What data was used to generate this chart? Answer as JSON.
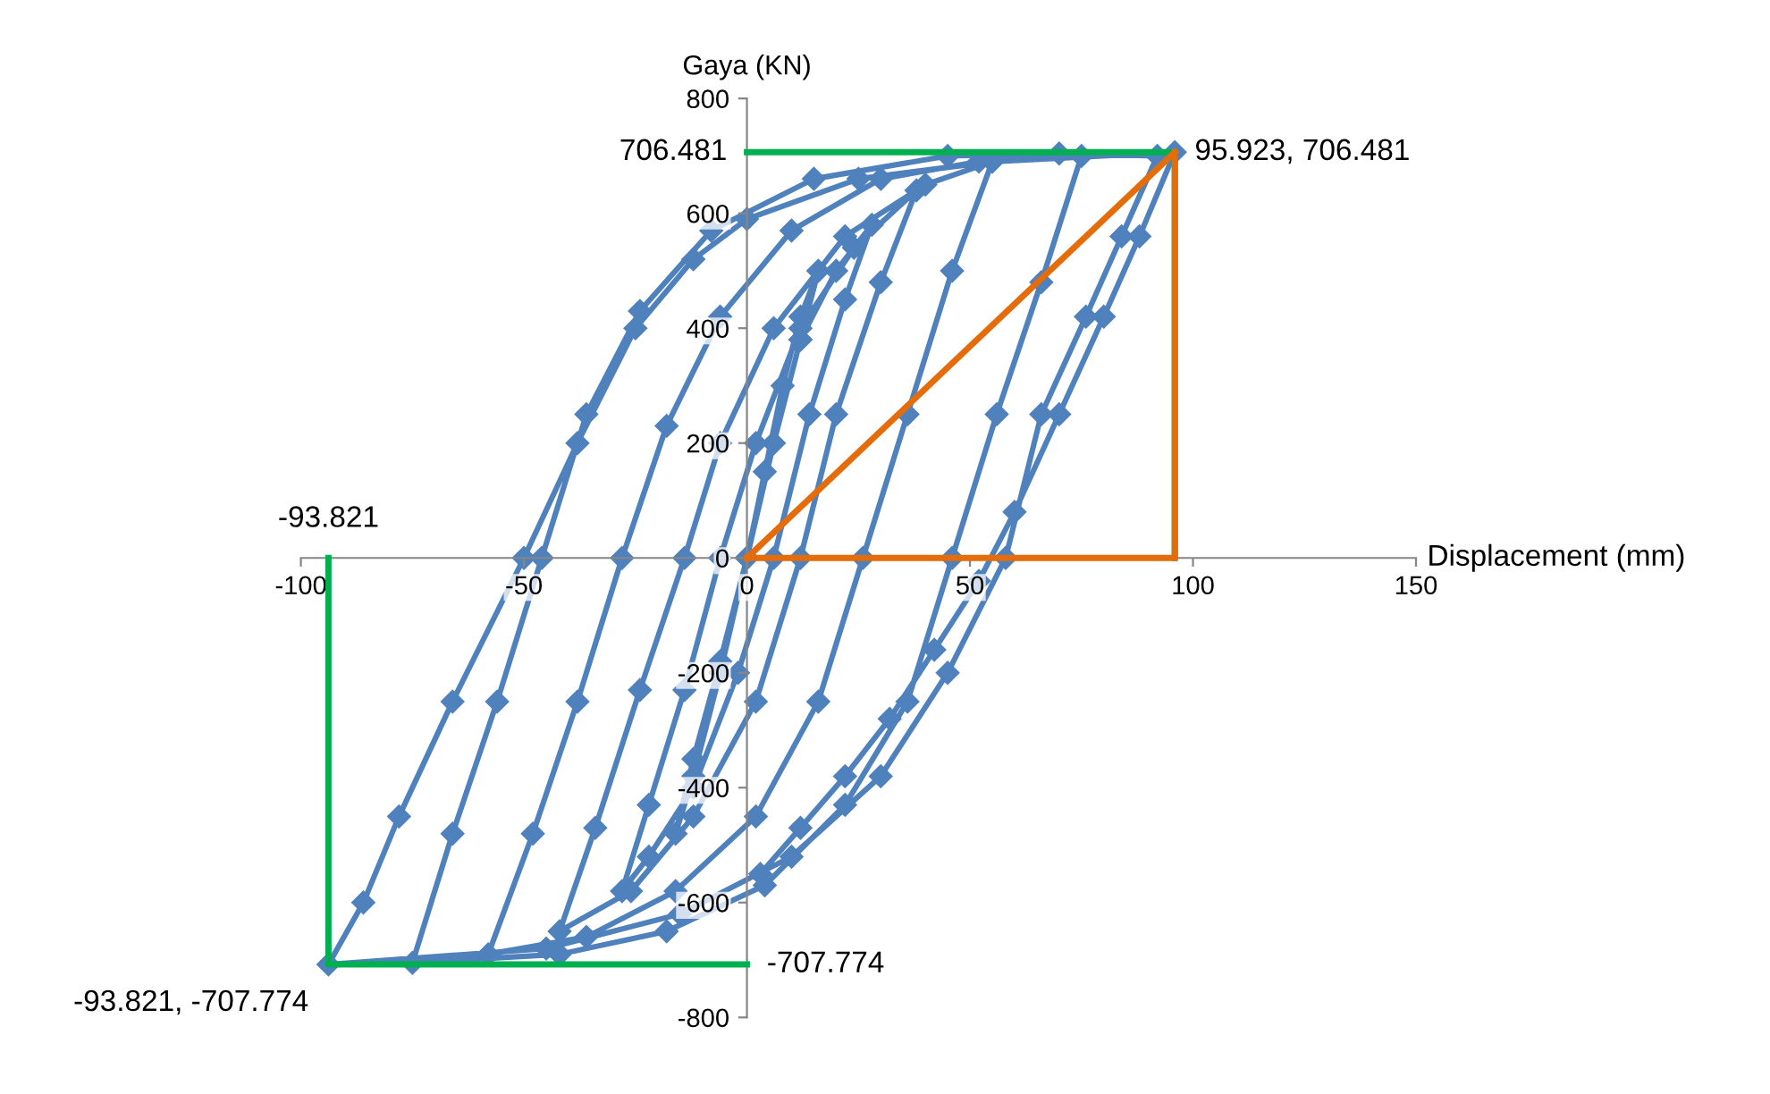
{
  "chart_data": {
    "type": "line",
    "xlabel": "Displacement (mm)",
    "ylabel": "Gaya (KN)",
    "xlim": [
      -100,
      150
    ],
    "xticks": [
      -100,
      -50,
      0,
      50,
      100,
      150
    ],
    "ylim": [
      -800,
      800
    ],
    "yticks": [
      -800,
      -600,
      -400,
      -200,
      0,
      200,
      400,
      600,
      800
    ],
    "grid": false,
    "legend": false,
    "series": [
      {
        "color": "#4f81bd",
        "marker": "diamond",
        "x": [
          0,
          4,
          8,
          12,
          16,
          12,
          6,
          0,
          -6,
          -12,
          -16,
          -12,
          -6,
          0,
          6,
          12,
          20,
          28,
          22,
          14,
          6,
          -2,
          -12,
          -22,
          -28,
          -22,
          -14,
          -6,
          2,
          12,
          24,
          38,
          30,
          20,
          12,
          2,
          -12,
          -26,
          -42,
          -34,
          -24,
          -14,
          -6,
          6,
          22,
          40,
          55,
          46,
          36,
          26,
          16,
          2,
          -16,
          -36,
          -58,
          -48,
          -38,
          -28,
          -18,
          -6,
          10,
          30,
          52,
          75,
          66,
          56,
          46,
          36,
          22,
          4,
          -18,
          -42,
          -75,
          -66,
          -56,
          -46,
          -36,
          -24,
          -8,
          15,
          45,
          70,
          92,
          84,
          76,
          66,
          58,
          45,
          30,
          10,
          -15,
          -45,
          -93.821,
          -86,
          -78,
          -66,
          -50,
          -38,
          -25,
          -12,
          0,
          25,
          55,
          95.923,
          88,
          80,
          70,
          60,
          52,
          42,
          32,
          22,
          12,
          3
        ],
        "values": [
          0,
          150,
          300,
          420,
          500,
          380,
          200,
          0,
          -200,
          -380,
          -480,
          -350,
          -180,
          0,
          200,
          380,
          500,
          580,
          450,
          250,
          0,
          -200,
          -400,
          -520,
          -580,
          -430,
          -230,
          0,
          200,
          400,
          540,
          640,
          480,
          250,
          0,
          -250,
          -450,
          -580,
          -650,
          -470,
          -230,
          0,
          200,
          400,
          560,
          650,
          690,
          500,
          250,
          0,
          -250,
          -450,
          -580,
          -660,
          -690,
          -480,
          -250,
          0,
          230,
          420,
          570,
          660,
          690,
          700,
          480,
          250,
          0,
          -250,
          -430,
          -570,
          -650,
          -690,
          -705,
          -480,
          -250,
          0,
          250,
          430,
          570,
          660,
          700,
          704,
          700,
          560,
          420,
          250,
          0,
          -200,
          -380,
          -520,
          -620,
          -680,
          -707.774,
          -600,
          -450,
          -250,
          0,
          200,
          400,
          520,
          590,
          660,
          690,
          706.481,
          560,
          420,
          250,
          80,
          -40,
          -160,
          -280,
          -380,
          -470,
          -550
        ]
      },
      {
        "color": "#00b050",
        "marker": "none",
        "x": [
          0,
          95.923,
          95.923
        ],
        "values": [
          706.481,
          706.481,
          0
        ]
      },
      {
        "color": "#00b050",
        "marker": "none",
        "x": [
          -93.821,
          -93.821,
          0
        ],
        "values": [
          0,
          -707.774,
          -707.774
        ]
      },
      {
        "color": "#e46c0a",
        "marker": "none",
        "x": [
          0,
          95.923
        ],
        "values": [
          0,
          706.481
        ]
      },
      {
        "color": "#e46c0a",
        "marker": "none",
        "x": [
          95.923,
          95.923,
          0
        ],
        "values": [
          706.481,
          0,
          0
        ]
      }
    ],
    "annotations": [
      {
        "text": "95.923, 706.481",
        "x": 95.923,
        "y": 706.481
      },
      {
        "text": "-93.821, -707.774",
        "x": -93.821,
        "y": -707.774
      },
      {
        "text": "706.481",
        "x": 0,
        "y": 706.481
      },
      {
        "text": "-707.774",
        "x": 0,
        "y": -707.774
      },
      {
        "text": "-93.821",
        "x": -93.821,
        "y": 0
      }
    ]
  }
}
